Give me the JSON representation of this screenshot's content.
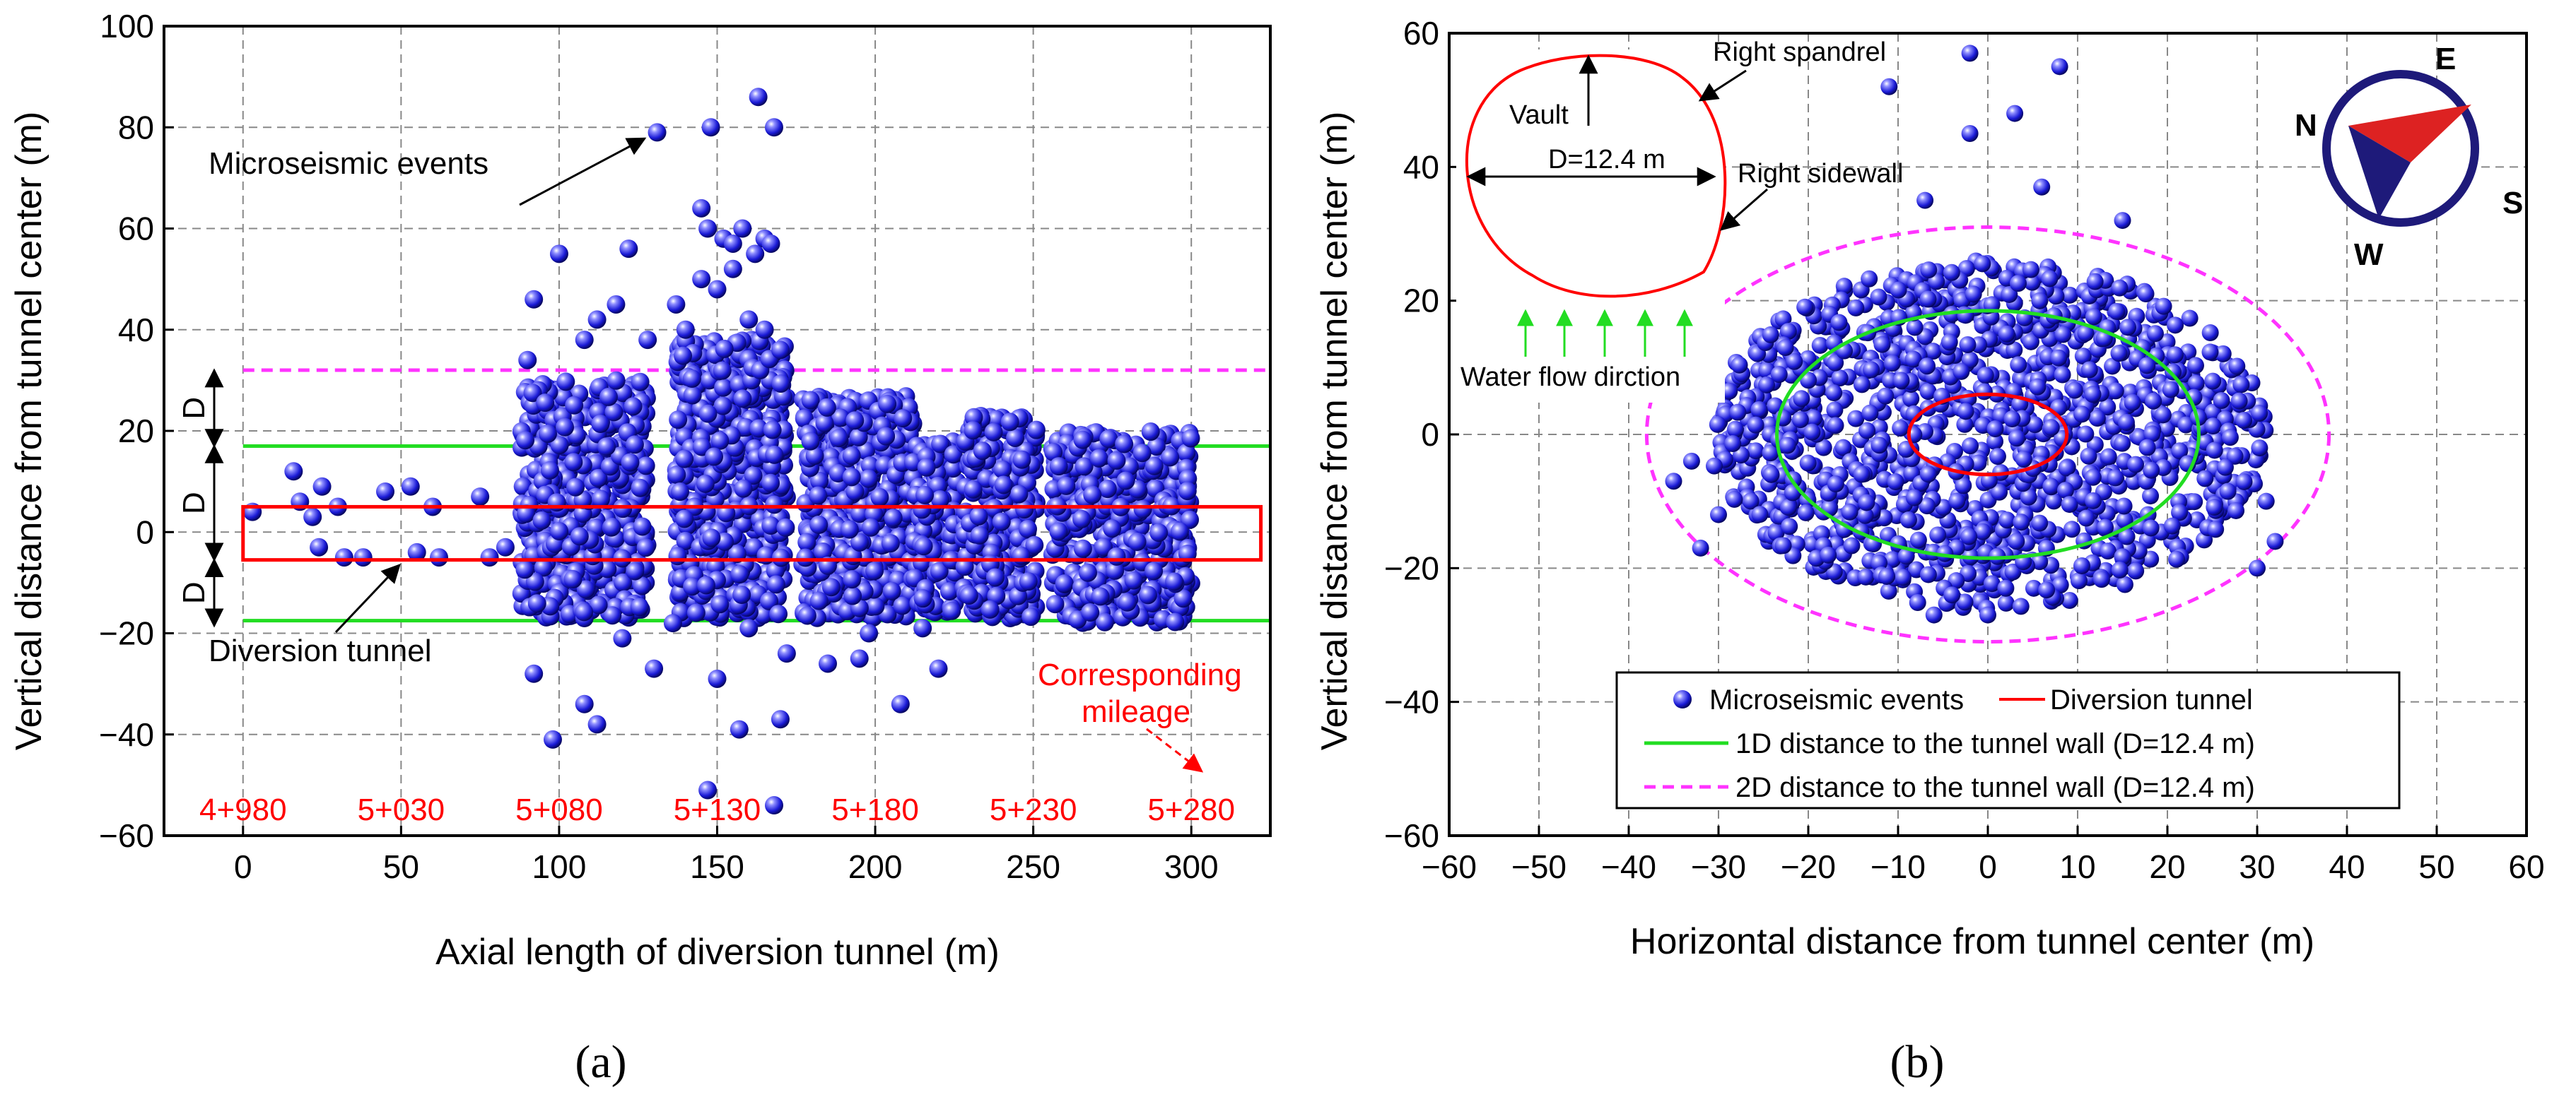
{
  "colors": {
    "events": "#1a1ad6",
    "tunnel": "#ff0000",
    "one_d": "#22dd22",
    "two_d": "#ff33ff",
    "grid": "#888888",
    "compass_blue": "#1e1a7a",
    "compass_red": "#dd2222"
  },
  "chart_data": [
    {
      "type": "scatter",
      "panel": "a",
      "caption": "(a)",
      "xlabel": "Axial length of diversion tunnel (m)",
      "ylabel": "Vertical distance from tunnel center (m)",
      "xlim": [
        -25,
        325
      ],
      "ylim": [
        -60,
        100
      ],
      "xticks": [
        "0",
        "50",
        "100",
        "150",
        "200",
        "250",
        "300"
      ],
      "yticks": [
        "−60",
        "−40",
        "−20",
        "0",
        "20",
        "40",
        "60",
        "80",
        "100"
      ],
      "grid": true,
      "mileage": [
        "4+980",
        "5+030",
        "5+080",
        "5+130",
        "5+180",
        "5+230",
        "5+280"
      ],
      "annotations": {
        "events": "Microseismic events",
        "tunnel": "Diversion tunnel",
        "corr1": "Corresponding",
        "corr2": "mileage",
        "d": "D"
      },
      "lines": {
        "two_d_y": 32,
        "one_d_y": [
          17,
          -17.5
        ],
        "tunnel_box": {
          "x": [
            0,
            322
          ],
          "y": [
            -5.5,
            5
          ]
        }
      },
      "clusters": [
        {
          "x": [
            88,
            128
          ],
          "y": [
            -17,
            30
          ],
          "n": 520
        },
        {
          "x": [
            137,
            172
          ],
          "y": [
            -17,
            38
          ],
          "n": 620
        },
        {
          "x": [
            177,
            212
          ],
          "y": [
            -17,
            27
          ],
          "n": 470
        },
        {
          "x": [
            212,
            226
          ],
          "y": [
            -16,
            18
          ],
          "n": 140
        },
        {
          "x": [
            228,
            251
          ],
          "y": [
            -17,
            23
          ],
          "n": 290
        },
        {
          "x": [
            256,
            300
          ],
          "y": [
            -18,
            20
          ],
          "n": 460
        }
      ],
      "points": [
        [
          3,
          4
        ],
        [
          16,
          12
        ],
        [
          18,
          6
        ],
        [
          22,
          3
        ],
        [
          24,
          -3
        ],
        [
          25,
          9
        ],
        [
          30,
          5
        ],
        [
          32,
          -5
        ],
        [
          38,
          -5
        ],
        [
          45,
          8
        ],
        [
          53,
          9
        ],
        [
          55,
          -4
        ],
        [
          60,
          5
        ],
        [
          62,
          -5
        ],
        [
          75,
          7
        ],
        [
          78,
          -5
        ],
        [
          83,
          -3
        ],
        [
          90,
          34
        ],
        [
          92,
          46
        ],
        [
          100,
          55
        ],
        [
          108,
          38
        ],
        [
          112,
          42
        ],
        [
          118,
          45
        ],
        [
          122,
          56
        ],
        [
          128,
          38
        ],
        [
          131,
          79
        ],
        [
          148,
          80
        ],
        [
          168,
          80
        ],
        [
          163,
          86
        ],
        [
          145,
          64
        ],
        [
          147,
          60
        ],
        [
          152,
          58
        ],
        [
          155,
          57
        ],
        [
          158,
          60
        ],
        [
          162,
          55
        ],
        [
          165,
          58
        ],
        [
          167,
          57
        ],
        [
          145,
          50
        ],
        [
          150,
          48
        ],
        [
          155,
          52
        ],
        [
          160,
          42
        ],
        [
          165,
          40
        ],
        [
          170,
          36
        ],
        [
          140,
          40
        ],
        [
          137,
          45
        ],
        [
          92,
          -28
        ],
        [
          98,
          -41
        ],
        [
          108,
          -34
        ],
        [
          112,
          -38
        ],
        [
          120,
          -21
        ],
        [
          130,
          -27
        ],
        [
          136,
          -18
        ],
        [
          150,
          -29
        ],
        [
          157,
          -39
        ],
        [
          147,
          -51
        ],
        [
          160,
          -19
        ],
        [
          168,
          -54
        ],
        [
          170,
          -37
        ],
        [
          172,
          -24
        ],
        [
          185,
          -26
        ],
        [
          195,
          -25
        ],
        [
          208,
          -34
        ],
        [
          220,
          -27
        ],
        [
          198,
          -20
        ],
        [
          215,
          -19
        ]
      ]
    },
    {
      "type": "scatter",
      "panel": "b",
      "caption": "(b)",
      "xlabel": "Horizontal distance from tunnel center (m)",
      "ylabel": "Vertical distance from tunnel center (m)",
      "xlim": [
        -60,
        60
      ],
      "ylim": [
        -60,
        60
      ],
      "xticks": [
        "−60",
        "−50",
        "−40",
        "−30",
        "−20",
        "−10",
        "0",
        "10",
        "20",
        "30",
        "40",
        "50",
        "60"
      ],
      "yticks": [
        "−60",
        "−40",
        "−20",
        "0",
        "20",
        "40",
        "60"
      ],
      "grid": true,
      "circles": {
        "tunnel": {
          "rx": 8.8,
          "ry": 6
        },
        "one_d": {
          "rx": 23.5,
          "ry": 18.5
        },
        "two_d": {
          "rx": 38,
          "ry": 31
        }
      },
      "clusters": [
        {
          "cx": 0,
          "cy": 0,
          "rx": 31,
          "ry": 26,
          "n": 1200
        }
      ],
      "points": [
        [
          -2,
          57
        ],
        [
          -11,
          52
        ],
        [
          -2,
          45
        ],
        [
          3,
          48
        ],
        [
          8,
          55
        ],
        [
          -7,
          35
        ],
        [
          6,
          37
        ],
        [
          15,
          32
        ],
        [
          -35,
          -7
        ],
        [
          -32,
          -17
        ],
        [
          -30,
          -12
        ],
        [
          -33,
          -4
        ],
        [
          31,
          -10
        ],
        [
          32,
          -16
        ],
        [
          -6,
          -27
        ],
        [
          -4,
          -24
        ],
        [
          0,
          -27
        ],
        [
          2,
          -23
        ],
        [
          28,
          5
        ],
        [
          30,
          -20
        ]
      ],
      "legend": {
        "events": "Microseismic events",
        "tunnel": "Diversion tunnel",
        "one_d": "1D distance to the tunnel wall (D=12.4 m)",
        "two_d": "2D distance to the tunnel wall (D=12.4 m)"
      },
      "inset": {
        "vault": "Vault",
        "spandrel": "Right spandrel",
        "diameter": "D=12.4 m",
        "sidewall": "Right sidewall",
        "water": "Water flow dirction"
      },
      "compass": {
        "E": "E",
        "N": "N",
        "S": "S",
        "W": "W"
      }
    }
  ]
}
